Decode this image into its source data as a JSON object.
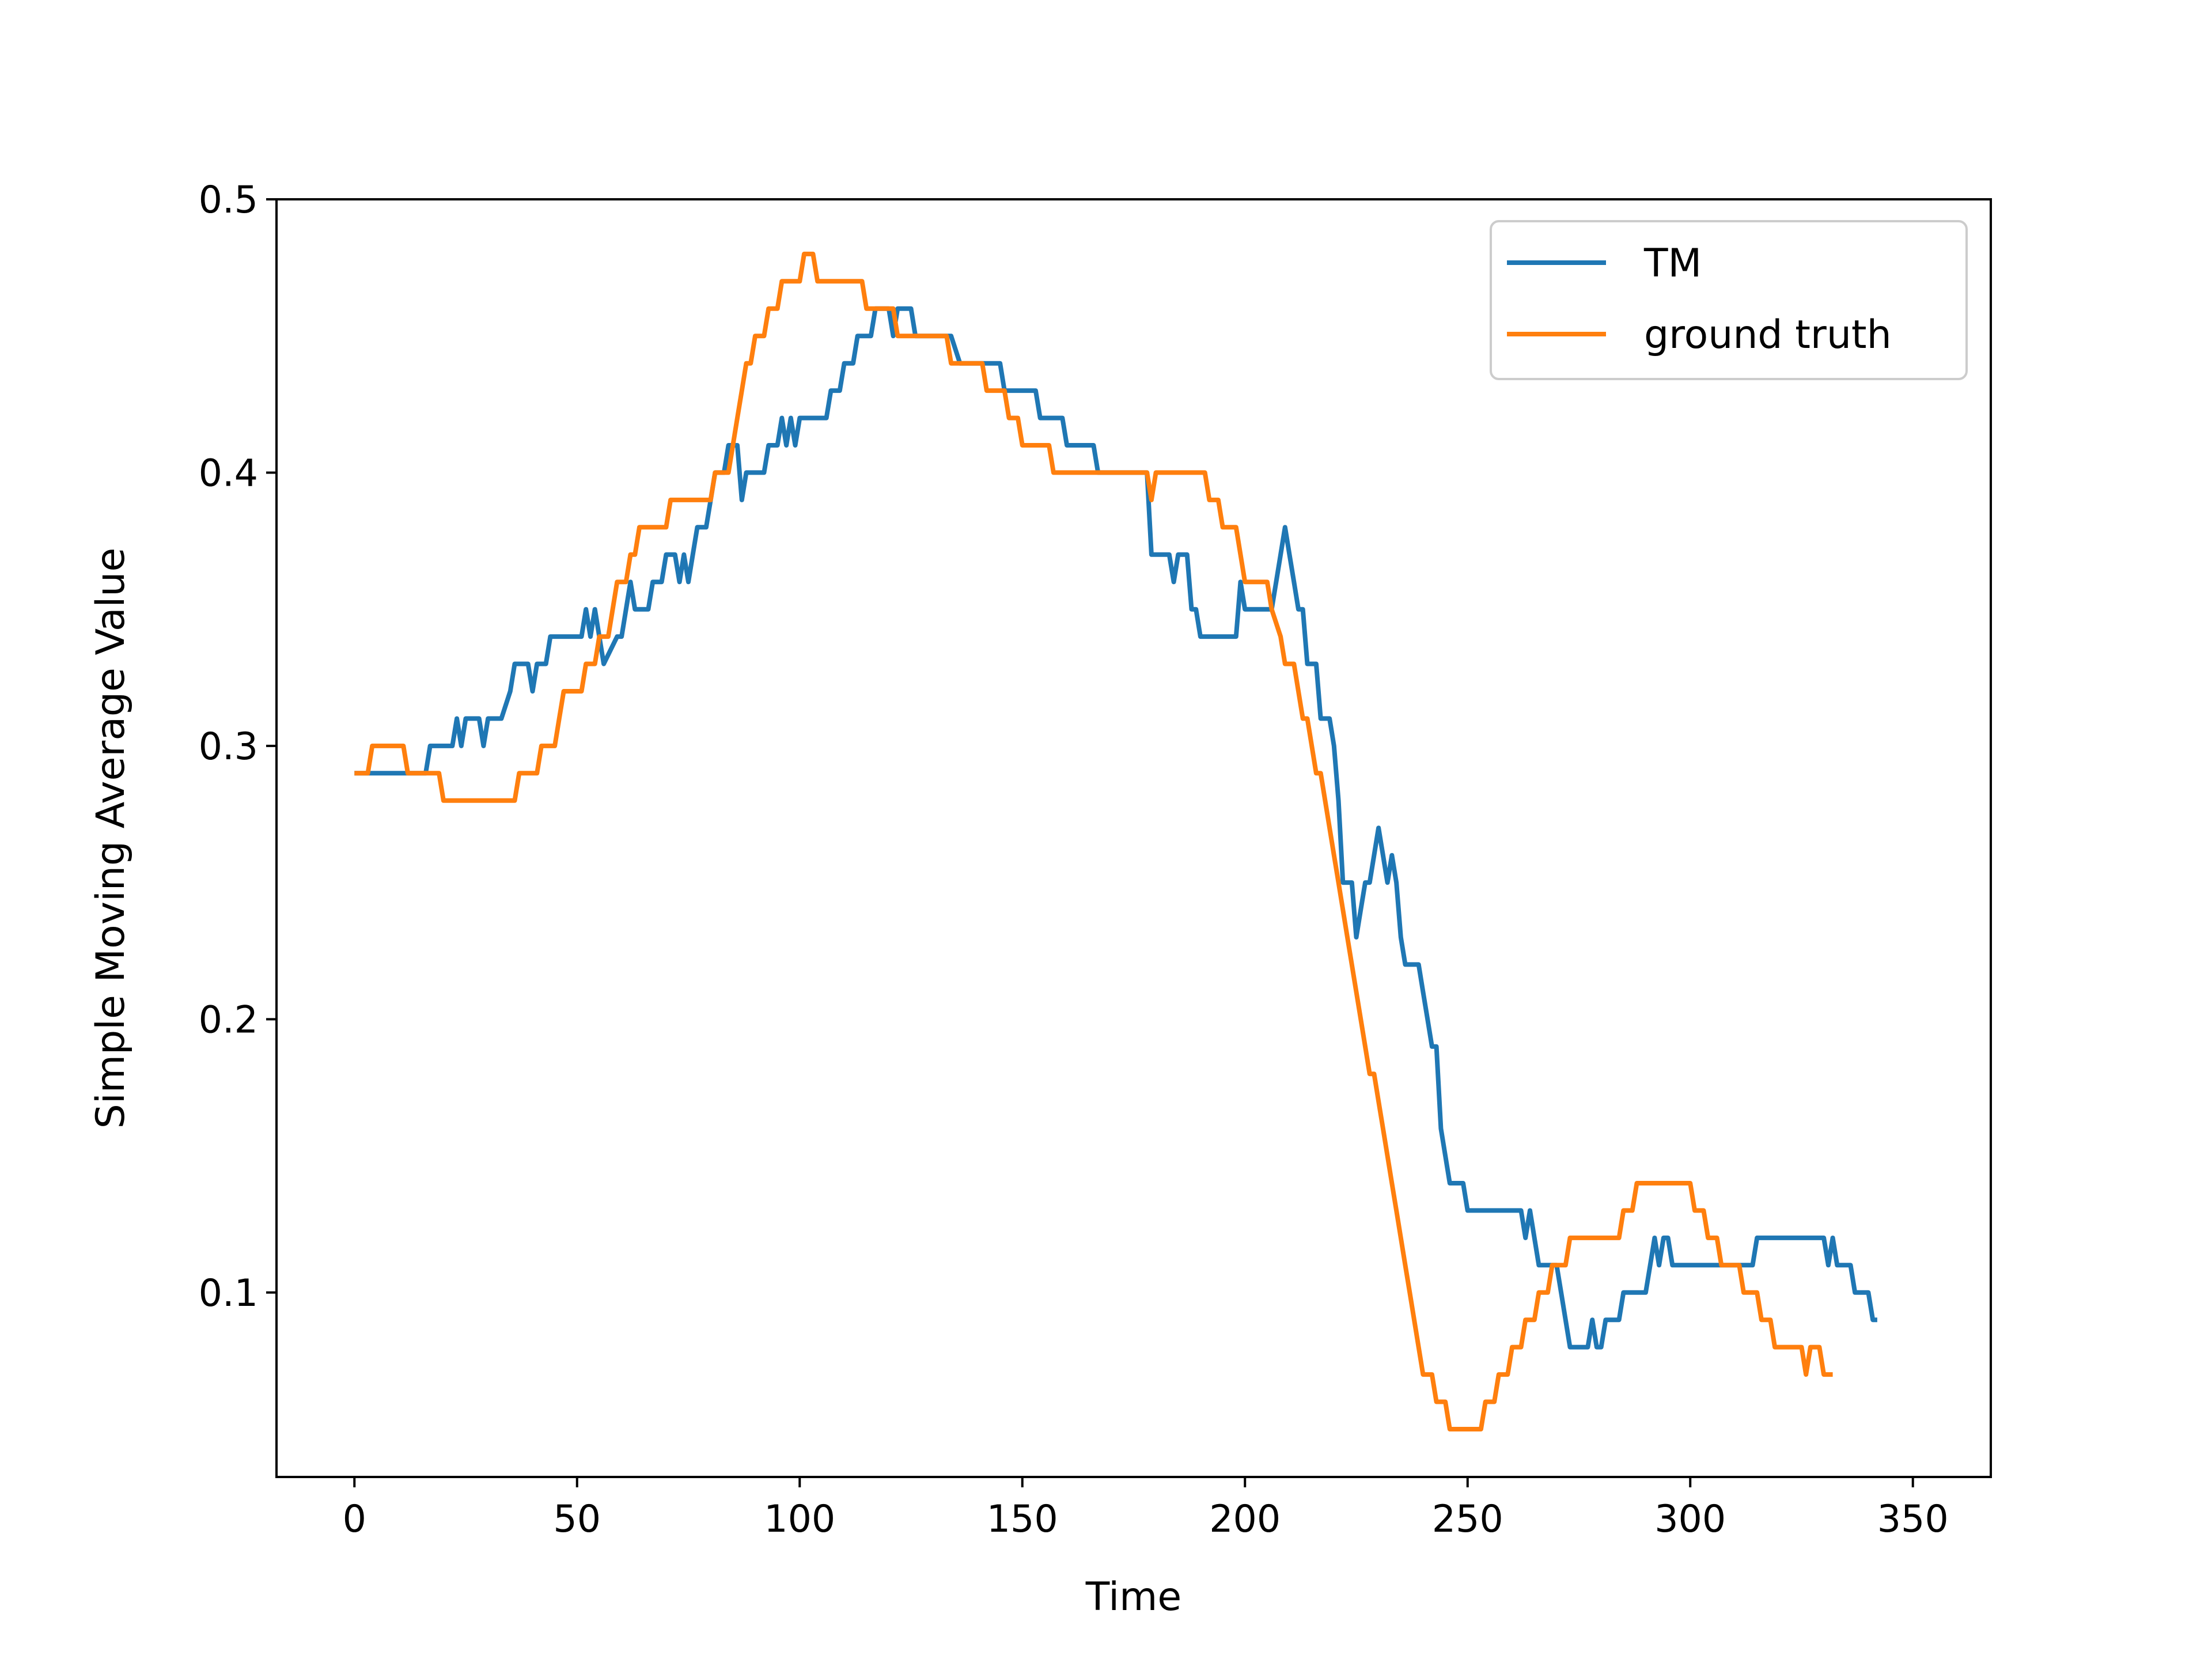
{
  "chart_data": {
    "type": "line",
    "title": "",
    "xlabel": "Time",
    "ylabel": "Simple Moving Average Value",
    "xlim": [
      -17.5,
      367.5
    ],
    "ylim": [
      0.0325,
      0.5
    ],
    "xticks": [
      0,
      50,
      100,
      150,
      200,
      250,
      300,
      350
    ],
    "xtick_labels": [
      "0",
      "50",
      "100",
      "150",
      "200",
      "250",
      "300",
      "350"
    ],
    "yticks": [
      0.1,
      0.2,
      0.3,
      0.4,
      0.5
    ],
    "ytick_labels": [
      "0.1",
      "0.2",
      "0.3",
      "0.4",
      "0.5"
    ],
    "grid": false,
    "legend_position": "top-right",
    "series": [
      {
        "name": "TM",
        "color": "#1f77b4",
        "points": [
          [
            0,
            0.29
          ],
          [
            12,
            0.29
          ],
          [
            16,
            0.29
          ],
          [
            17,
            0.3
          ],
          [
            22,
            0.3
          ],
          [
            23,
            0.31
          ],
          [
            24,
            0.3
          ],
          [
            25,
            0.31
          ],
          [
            28,
            0.31
          ],
          [
            29,
            0.3
          ],
          [
            30,
            0.31
          ],
          [
            33,
            0.31
          ],
          [
            35,
            0.32
          ],
          [
            36,
            0.33
          ],
          [
            39,
            0.33
          ],
          [
            40,
            0.32
          ],
          [
            41,
            0.33
          ],
          [
            43,
            0.33
          ],
          [
            44,
            0.34
          ],
          [
            51,
            0.34
          ],
          [
            52,
            0.35
          ],
          [
            53,
            0.34
          ],
          [
            54,
            0.35
          ],
          [
            55,
            0.34
          ],
          [
            56,
            0.33
          ],
          [
            59,
            0.34
          ],
          [
            60,
            0.34
          ],
          [
            61,
            0.35
          ],
          [
            62,
            0.36
          ],
          [
            63,
            0.35
          ],
          [
            66,
            0.35
          ],
          [
            67,
            0.36
          ],
          [
            69,
            0.36
          ],
          [
            70,
            0.37
          ],
          [
            72,
            0.37
          ],
          [
            73,
            0.36
          ],
          [
            74,
            0.37
          ],
          [
            75,
            0.36
          ],
          [
            76,
            0.37
          ],
          [
            77,
            0.38
          ],
          [
            79,
            0.38
          ],
          [
            80,
            0.39
          ],
          [
            81,
            0.4
          ],
          [
            83,
            0.4
          ],
          [
            84,
            0.41
          ],
          [
            86,
            0.41
          ],
          [
            87,
            0.39
          ],
          [
            88,
            0.4
          ],
          [
            92,
            0.4
          ],
          [
            93,
            0.41
          ],
          [
            95,
            0.41
          ],
          [
            96,
            0.42
          ],
          [
            97,
            0.41
          ],
          [
            98,
            0.42
          ],
          [
            99,
            0.41
          ],
          [
            100,
            0.42
          ],
          [
            106,
            0.42
          ],
          [
            107,
            0.43
          ],
          [
            109,
            0.43
          ],
          [
            110,
            0.44
          ],
          [
            112,
            0.44
          ],
          [
            113,
            0.45
          ],
          [
            116,
            0.45
          ],
          [
            117,
            0.46
          ],
          [
            120,
            0.46
          ],
          [
            121,
            0.45
          ],
          [
            122,
            0.46
          ],
          [
            125,
            0.46
          ],
          [
            126,
            0.45
          ],
          [
            134,
            0.45
          ],
          [
            136,
            0.44
          ],
          [
            145,
            0.44
          ],
          [
            146,
            0.43
          ],
          [
            153,
            0.43
          ],
          [
            154,
            0.42
          ],
          [
            159,
            0.42
          ],
          [
            160,
            0.41
          ],
          [
            166,
            0.41
          ],
          [
            167,
            0.4
          ],
          [
            178,
            0.4
          ],
          [
            179,
            0.37
          ],
          [
            183,
            0.37
          ],
          [
            184,
            0.36
          ],
          [
            185,
            0.37
          ],
          [
            187,
            0.37
          ],
          [
            188,
            0.35
          ],
          [
            189,
            0.35
          ],
          [
            190,
            0.34
          ],
          [
            198,
            0.34
          ],
          [
            199,
            0.36
          ],
          [
            200,
            0.35
          ],
          [
            206,
            0.35
          ],
          [
            207,
            0.36
          ],
          [
            208,
            0.37
          ],
          [
            209,
            0.38
          ],
          [
            210,
            0.37
          ],
          [
            211,
            0.36
          ],
          [
            212,
            0.35
          ],
          [
            213,
            0.35
          ],
          [
            214,
            0.33
          ],
          [
            216,
            0.33
          ],
          [
            217,
            0.31
          ],
          [
            219,
            0.31
          ],
          [
            220,
            0.3
          ],
          [
            221,
            0.28
          ],
          [
            222,
            0.25
          ],
          [
            224,
            0.25
          ],
          [
            225,
            0.23
          ],
          [
            226,
            0.24
          ],
          [
            227,
            0.25
          ],
          [
            228,
            0.25
          ],
          [
            229,
            0.26
          ],
          [
            230,
            0.27
          ],
          [
            231,
            0.26
          ],
          [
            232,
            0.25
          ],
          [
            233,
            0.26
          ],
          [
            234,
            0.25
          ],
          [
            235,
            0.23
          ],
          [
            236,
            0.22
          ],
          [
            239,
            0.22
          ],
          [
            240,
            0.21
          ],
          [
            241,
            0.2
          ],
          [
            242,
            0.19
          ],
          [
            243,
            0.19
          ],
          [
            244,
            0.16
          ],
          [
            245,
            0.15
          ],
          [
            246,
            0.14
          ],
          [
            249,
            0.14
          ],
          [
            250,
            0.13
          ],
          [
            262,
            0.13
          ],
          [
            263,
            0.12
          ],
          [
            264,
            0.13
          ],
          [
            265,
            0.12
          ],
          [
            266,
            0.11
          ],
          [
            270,
            0.11
          ],
          [
            271,
            0.1
          ],
          [
            272,
            0.09
          ],
          [
            273,
            0.08
          ],
          [
            277,
            0.08
          ],
          [
            278,
            0.09
          ],
          [
            279,
            0.08
          ],
          [
            280,
            0.08
          ],
          [
            281,
            0.09
          ],
          [
            284,
            0.09
          ],
          [
            285,
            0.1
          ],
          [
            290,
            0.1
          ],
          [
            291,
            0.11
          ],
          [
            292,
            0.12
          ],
          [
            293,
            0.11
          ],
          [
            294,
            0.12
          ],
          [
            295,
            0.12
          ],
          [
            296,
            0.11
          ],
          [
            312,
            0.11
          ],
          [
            314,
            0.11
          ],
          [
            315,
            0.12
          ],
          [
            330,
            0.12
          ],
          [
            331,
            0.11
          ],
          [
            332,
            0.12
          ],
          [
            333,
            0.11
          ],
          [
            336,
            0.11
          ],
          [
            337,
            0.1
          ],
          [
            340,
            0.1
          ],
          [
            341,
            0.09
          ],
          [
            342,
            0.09
          ]
        ]
      },
      {
        "name": "ground truth",
        "color": "#ff7f0e",
        "points": [
          [
            0,
            0.29
          ],
          [
            3,
            0.29
          ],
          [
            4,
            0.3
          ],
          [
            11,
            0.3
          ],
          [
            12,
            0.29
          ],
          [
            19,
            0.29
          ],
          [
            20,
            0.28
          ],
          [
            36,
            0.28
          ],
          [
            37,
            0.29
          ],
          [
            41,
            0.29
          ],
          [
            42,
            0.3
          ],
          [
            45,
            0.3
          ],
          [
            46,
            0.31
          ],
          [
            47,
            0.32
          ],
          [
            51,
            0.32
          ],
          [
            52,
            0.33
          ],
          [
            54,
            0.33
          ],
          [
            55,
            0.34
          ],
          [
            57,
            0.34
          ],
          [
            58,
            0.35
          ],
          [
            59,
            0.36
          ],
          [
            61,
            0.36
          ],
          [
            62,
            0.37
          ],
          [
            63,
            0.37
          ],
          [
            64,
            0.38
          ],
          [
            70,
            0.38
          ],
          [
            71,
            0.39
          ],
          [
            80,
            0.39
          ],
          [
            81,
            0.4
          ],
          [
            84,
            0.4
          ],
          [
            85,
            0.41
          ],
          [
            86,
            0.42
          ],
          [
            87,
            0.43
          ],
          [
            88,
            0.44
          ],
          [
            89,
            0.44
          ],
          [
            90,
            0.45
          ],
          [
            92,
            0.45
          ],
          [
            93,
            0.46
          ],
          [
            95,
            0.46
          ],
          [
            96,
            0.47
          ],
          [
            100,
            0.47
          ],
          [
            101,
            0.48
          ],
          [
            103,
            0.48
          ],
          [
            104,
            0.47
          ],
          [
            114,
            0.47
          ],
          [
            115,
            0.46
          ],
          [
            121,
            0.46
          ],
          [
            122,
            0.45
          ],
          [
            133,
            0.45
          ],
          [
            134,
            0.44
          ],
          [
            141,
            0.44
          ],
          [
            142,
            0.43
          ],
          [
            146,
            0.43
          ],
          [
            147,
            0.42
          ],
          [
            149,
            0.42
          ],
          [
            150,
            0.41
          ],
          [
            156,
            0.41
          ],
          [
            157,
            0.4
          ],
          [
            178,
            0.4
          ],
          [
            179,
            0.39
          ],
          [
            180,
            0.4
          ],
          [
            191,
            0.4
          ],
          [
            192,
            0.39
          ],
          [
            194,
            0.39
          ],
          [
            195,
            0.38
          ],
          [
            198,
            0.38
          ],
          [
            199,
            0.37
          ],
          [
            200,
            0.36
          ],
          [
            205,
            0.36
          ],
          [
            206,
            0.35
          ],
          [
            208,
            0.34
          ],
          [
            209,
            0.33
          ],
          [
            211,
            0.33
          ],
          [
            212,
            0.32
          ],
          [
            213,
            0.31
          ],
          [
            214,
            0.31
          ],
          [
            215,
            0.3
          ],
          [
            216,
            0.29
          ],
          [
            217,
            0.29
          ],
          [
            218,
            0.28
          ],
          [
            219,
            0.27
          ],
          [
            220,
            0.26
          ],
          [
            221,
            0.25
          ],
          [
            222,
            0.24
          ],
          [
            223,
            0.23
          ],
          [
            225,
            0.21
          ],
          [
            227,
            0.19
          ],
          [
            228,
            0.18
          ],
          [
            229,
            0.18
          ],
          [
            230,
            0.17
          ],
          [
            231,
            0.16
          ],
          [
            232,
            0.15
          ],
          [
            233,
            0.14
          ],
          [
            234,
            0.13
          ],
          [
            235,
            0.12
          ],
          [
            236,
            0.11
          ],
          [
            237,
            0.1
          ],
          [
            238,
            0.09
          ],
          [
            239,
            0.08
          ],
          [
            240,
            0.07
          ],
          [
            242,
            0.07
          ],
          [
            243,
            0.06
          ],
          [
            245,
            0.06
          ],
          [
            246,
            0.05
          ],
          [
            253,
            0.05
          ],
          [
            254,
            0.06
          ],
          [
            256,
            0.06
          ],
          [
            257,
            0.07
          ],
          [
            259,
            0.07
          ],
          [
            260,
            0.08
          ],
          [
            262,
            0.08
          ],
          [
            263,
            0.09
          ],
          [
            265,
            0.09
          ],
          [
            266,
            0.1
          ],
          [
            268,
            0.1
          ],
          [
            269,
            0.11
          ],
          [
            272,
            0.11
          ],
          [
            273,
            0.12
          ],
          [
            284,
            0.12
          ],
          [
            285,
            0.13
          ],
          [
            287,
            0.13
          ],
          [
            288,
            0.14
          ],
          [
            300,
            0.14
          ],
          [
            301,
            0.13
          ],
          [
            303,
            0.13
          ],
          [
            304,
            0.12
          ],
          [
            306,
            0.12
          ],
          [
            307,
            0.11
          ],
          [
            311,
            0.11
          ],
          [
            312,
            0.1
          ],
          [
            315,
            0.1
          ],
          [
            316,
            0.09
          ],
          [
            318,
            0.09
          ],
          [
            319,
            0.08
          ],
          [
            325,
            0.08
          ],
          [
            326,
            0.07
          ],
          [
            327,
            0.08
          ],
          [
            329,
            0.08
          ],
          [
            330,
            0.07
          ],
          [
            332,
            0.07
          ]
        ]
      }
    ]
  }
}
